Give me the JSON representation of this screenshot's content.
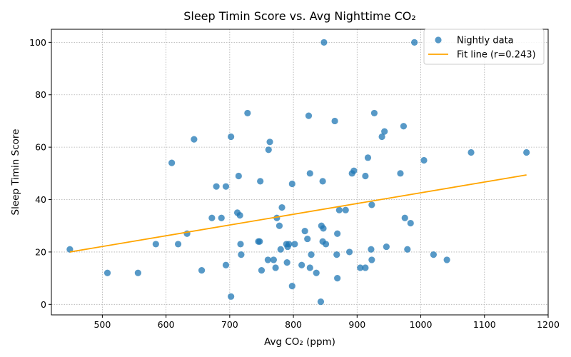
{
  "chart_data": {
    "type": "scatter",
    "title": "Sleep Timin Score vs. Avg Nighttime CO₂",
    "xlabel": "Avg CO₂ (ppm)",
    "ylabel": "Sleep Timin Score",
    "xlim": [
      420,
      1200
    ],
    "ylim": [
      -4,
      105
    ],
    "xticks": [
      500,
      600,
      700,
      800,
      900,
      1000,
      1100,
      1200
    ],
    "yticks": [
      0,
      20,
      40,
      60,
      80,
      100
    ],
    "grid": true,
    "legend_position": "top-right",
    "colors": {
      "points": "#1f77b4",
      "fit": "#ffa500"
    },
    "series": [
      {
        "name": "Nightly data",
        "kind": "scatter",
        "points": [
          [
            449,
            21
          ],
          [
            508,
            12
          ],
          [
            556,
            12
          ],
          [
            584,
            23
          ],
          [
            609,
            54
          ],
          [
            619,
            23
          ],
          [
            633,
            27
          ],
          [
            644,
            63
          ],
          [
            656,
            13
          ],
          [
            672,
            33
          ],
          [
            679,
            45
          ],
          [
            687,
            33
          ],
          [
            694,
            15
          ],
          [
            694,
            45
          ],
          [
            702,
            3
          ],
          [
            702,
            64
          ],
          [
            712,
            35
          ],
          [
            714,
            49
          ],
          [
            716,
            34
          ],
          [
            717,
            23
          ],
          [
            718,
            19
          ],
          [
            728,
            73
          ],
          [
            745,
            24
          ],
          [
            747,
            24
          ],
          [
            748,
            47
          ],
          [
            750,
            13
          ],
          [
            760,
            17
          ],
          [
            761,
            59
          ],
          [
            763,
            62
          ],
          [
            769,
            17
          ],
          [
            772,
            14
          ],
          [
            774,
            33
          ],
          [
            778,
            30
          ],
          [
            780,
            21
          ],
          [
            782,
            37
          ],
          [
            789,
            23
          ],
          [
            790,
            16
          ],
          [
            791,
            22
          ],
          [
            793,
            23
          ],
          [
            798,
            7
          ],
          [
            798,
            46
          ],
          [
            802,
            23
          ],
          [
            813,
            15
          ],
          [
            818,
            28
          ],
          [
            822,
            25
          ],
          [
            824,
            72
          ],
          [
            826,
            50
          ],
          [
            826,
            14
          ],
          [
            828,
            19
          ],
          [
            836,
            12
          ],
          [
            843,
            1
          ],
          [
            844,
            30
          ],
          [
            846,
            47
          ],
          [
            846,
            24
          ],
          [
            847,
            29
          ],
          [
            848,
            100
          ],
          [
            851,
            23
          ],
          [
            865,
            70
          ],
          [
            868,
            19
          ],
          [
            869,
            10
          ],
          [
            869,
            27
          ],
          [
            872,
            36
          ],
          [
            882,
            36
          ],
          [
            888,
            20
          ],
          [
            892,
            50
          ],
          [
            895,
            51
          ],
          [
            905,
            14
          ],
          [
            913,
            49
          ],
          [
            913,
            14
          ],
          [
            917,
            56
          ],
          [
            922,
            21
          ],
          [
            923,
            17
          ],
          [
            923,
            38
          ],
          [
            927,
            73
          ],
          [
            939,
            64
          ],
          [
            943,
            66
          ],
          [
            946,
            22
          ],
          [
            968,
            50
          ],
          [
            973,
            68
          ],
          [
            975,
            33
          ],
          [
            979,
            21
          ],
          [
            984,
            31
          ],
          [
            990,
            100
          ],
          [
            1005,
            55
          ],
          [
            1020,
            19
          ],
          [
            1041,
            17
          ],
          [
            1079,
            58
          ],
          [
            1166,
            58
          ]
        ]
      },
      {
        "name": "Fit line (r=0.243)",
        "kind": "line",
        "points": [
          [
            449,
            20.0
          ],
          [
            1166,
            49.4
          ]
        ]
      }
    ]
  }
}
